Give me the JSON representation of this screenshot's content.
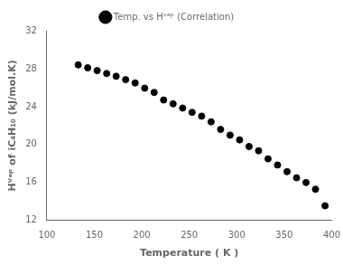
{
  "chart_data": {
    "type": "scatter",
    "x_label": "Temperature ( K )",
    "y_label": "Hⱽᵃᵖ of iC₄H₁₀ (kJ/mol.K)",
    "x": [
      133,
      143,
      153,
      163,
      173,
      183,
      193,
      203,
      213,
      223,
      233,
      243,
      253,
      263,
      273,
      283,
      293,
      303,
      313,
      323,
      333,
      343,
      353,
      363,
      373,
      383,
      393
    ],
    "series": [
      {
        "name": "Temp. vs Hᵛᵃᵖ (Correlation)",
        "color": "black",
        "marker": "circle",
        "values": [
          28.4,
          28.1,
          27.8,
          27.5,
          27.2,
          26.85,
          26.5,
          25.95,
          25.5,
          24.7,
          24.3,
          23.85,
          23.4,
          23.0,
          22.4,
          21.6,
          21.0,
          20.5,
          19.8,
          19.35,
          18.5,
          17.85,
          17.15,
          16.5,
          16.0,
          15.3,
          13.55
        ]
      }
    ],
    "xlim": [
      100,
      400
    ],
    "xticks": [
      100,
      150,
      200,
      250,
      300,
      350,
      400
    ],
    "ylim": [
      12,
      32
    ],
    "yticks": [
      12,
      16,
      20,
      24,
      28,
      32
    ],
    "grid": false,
    "legend": "top"
  }
}
